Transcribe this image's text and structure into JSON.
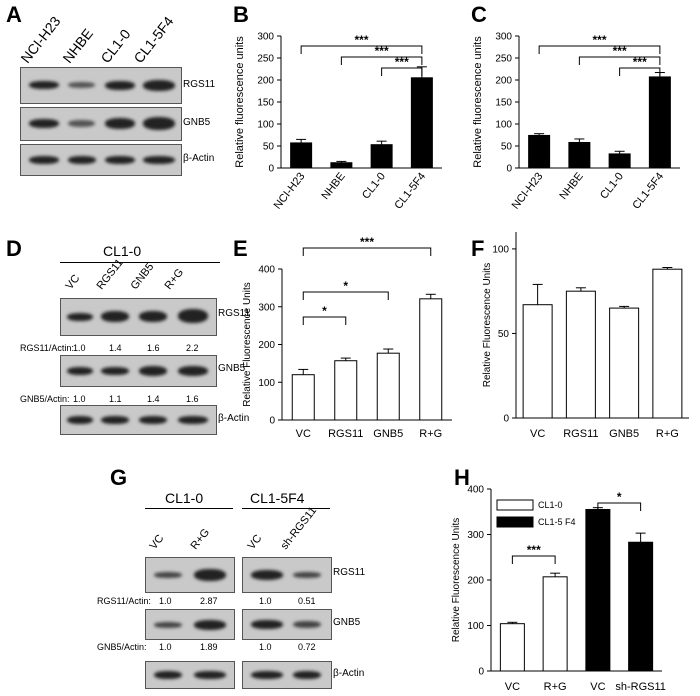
{
  "panels": {
    "A": "A",
    "B": "B",
    "C": "C",
    "D": "D",
    "E": "E",
    "F": "F",
    "G": "G",
    "H": "H"
  },
  "panelA": {
    "lanes": [
      "NCI-H23",
      "NHBE",
      "CL1-0",
      "CL1-5F4"
    ],
    "blots": [
      "RGS11",
      "GNB5",
      "β-Actin"
    ]
  },
  "panelD": {
    "group": "CL1-0",
    "lanes": [
      "VC",
      "RGS11",
      "GNB5",
      "R+G"
    ],
    "blots": [
      "RGS11",
      "GNB5",
      "β-Actin"
    ],
    "rgs11_ratio_label": "RGS11/Actin:",
    "rgs11_ratios": [
      "1.0",
      "1.4",
      "1.6",
      "2.2"
    ],
    "gnb5_ratio_label": "GNB5/Actin:",
    "gnb5_ratios": [
      "1.0",
      "1.1",
      "1.4",
      "1.6"
    ]
  },
  "panelG": {
    "group1": "CL1-0",
    "group2": "CL1-5F4",
    "lanes": [
      "VC",
      "R+G",
      "VC",
      "sh-RGS11"
    ],
    "blots": [
      "RGS11",
      "GNB5",
      "β-Actin"
    ],
    "rgs11_ratio_label": "RGS11/Actin:",
    "rgs11_ratios": [
      "1.0",
      "2.87",
      "1.0",
      "0.51"
    ],
    "gnb5_ratio_label": "GNB5/Actin:",
    "gnb5_ratios": [
      "1.0",
      "1.89",
      "1.0",
      "0.72"
    ]
  },
  "chart_data": [
    {
      "panel": "B",
      "type": "bar",
      "categories": [
        "NCI-H23",
        "NHBE",
        "CL1-0",
        "CL1-5F4"
      ],
      "values": [
        57,
        12,
        53,
        205
      ],
      "errors": [
        8,
        3,
        8,
        25
      ],
      "ylabel": "Relative fluorescence units",
      "ylim": [
        0,
        300
      ],
      "yticks": [
        "0",
        "50",
        "100",
        "150",
        "200",
        "250",
        "300"
      ],
      "fill": "#000000",
      "significance": [
        {
          "from": 0,
          "to": 3,
          "label": "***"
        },
        {
          "from": 1,
          "to": 3,
          "label": "***"
        },
        {
          "from": 2,
          "to": 3,
          "label": "***"
        }
      ]
    },
    {
      "panel": "C",
      "type": "bar",
      "categories": [
        "NCI-H23",
        "NHBE",
        "CL1-0",
        "CL1-5F4"
      ],
      "values": [
        74,
        58,
        32,
        207
      ],
      "errors": [
        4,
        8,
        6,
        10
      ],
      "ylabel": "Relative fluorescence units",
      "ylim": [
        0,
        300
      ],
      "yticks": [
        "0",
        "50",
        "100",
        "150",
        "200",
        "250",
        "300"
      ],
      "fill": "#000000",
      "significance": [
        {
          "from": 0,
          "to": 3,
          "label": "***"
        },
        {
          "from": 1,
          "to": 3,
          "label": "***"
        },
        {
          "from": 2,
          "to": 3,
          "label": "***"
        }
      ]
    },
    {
      "panel": "E",
      "type": "bar",
      "categories": [
        "VC",
        "RGS11",
        "GNB5",
        "R+G"
      ],
      "values": [
        120,
        157,
        177,
        321
      ],
      "errors": [
        14,
        7,
        11,
        12
      ],
      "ylabel": "Relative Fluorescence Units",
      "ylim": [
        0,
        400
      ],
      "yticks": [
        "0",
        "100",
        "200",
        "300",
        "400"
      ],
      "fill": "#ffffff",
      "significance": [
        {
          "from": 0,
          "to": 1,
          "label": "*"
        },
        {
          "from": 0,
          "to": 2,
          "label": "*"
        },
        {
          "from": 0,
          "to": 3,
          "label": "***"
        }
      ]
    },
    {
      "panel": "F",
      "type": "bar",
      "categories": [
        "VC",
        "RGS11",
        "GNB5",
        "R+G"
      ],
      "values": [
        67,
        75,
        65,
        88
      ],
      "errors": [
        12,
        2,
        1,
        1
      ],
      "ylabel": "Relative Fluorescence Units",
      "ylim": [
        0,
        110
      ],
      "yticks": [
        "0",
        "50",
        "100"
      ],
      "fill": "#ffffff",
      "significance": []
    },
    {
      "panel": "H",
      "type": "bar",
      "categories": [
        "VC",
        "R+G",
        "VC",
        "sh-RGS11"
      ],
      "values": [
        104,
        207,
        355,
        283
      ],
      "errors": [
        3,
        8,
        4,
        20
      ],
      "fills": [
        "#ffffff",
        "#ffffff",
        "#000000",
        "#000000"
      ],
      "ylabel": "Relative Fluorescence Units",
      "ylim": [
        0,
        400
      ],
      "yticks": [
        "0",
        "100",
        "200",
        "300",
        "400"
      ],
      "legend": [
        {
          "name": "CL1-0",
          "color": "#ffffff"
        },
        {
          "name": "CL1-5 F4",
          "color": "#000000"
        }
      ],
      "significance": [
        {
          "from": 0,
          "to": 1,
          "label": "***"
        },
        {
          "from": 2,
          "to": 3,
          "label": "*"
        }
      ]
    }
  ]
}
